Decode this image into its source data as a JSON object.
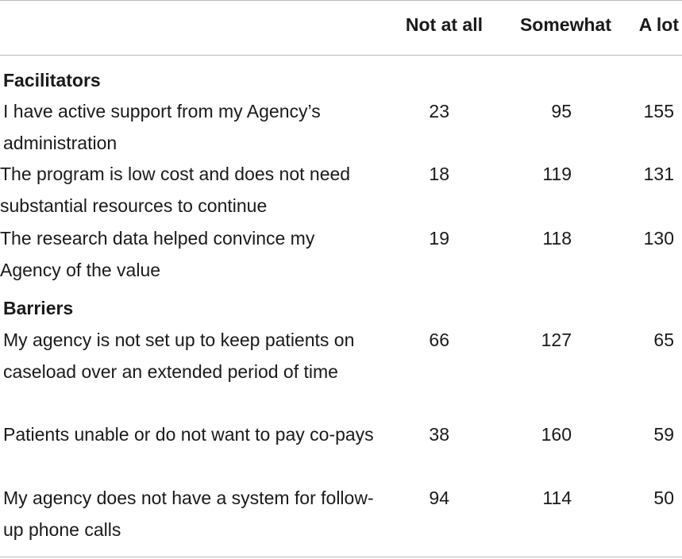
{
  "columns": [
    "Not at all",
    "Somewhat",
    "A lot"
  ],
  "sections": [
    {
      "title": "Facilitators",
      "rows": [
        {
          "label": "I have active support from my Agency’s administration",
          "values": [
            "23",
            "95",
            "155"
          ]
        },
        {
          "label": "The program is low cost and does not need substantial resources to continue",
          "values": [
            "18",
            "119",
            "131"
          ]
        },
        {
          "label": "The research data helped convince my Agency of the value",
          "values": [
            "19",
            "118",
            "130"
          ]
        }
      ]
    },
    {
      "title": "Barriers",
      "rows": [
        {
          "label": "My agency is not set up to keep patients on caseload over an extended period of time",
          "values": [
            "66",
            "127",
            "65"
          ]
        },
        {
          "label": "Patients unable or do not want to pay co-pays",
          "values": [
            "38",
            "160",
            "59"
          ]
        },
        {
          "label": "My agency does not have a system for follow-up phone calls",
          "values": [
            "94",
            "114",
            "50"
          ]
        }
      ]
    }
  ]
}
